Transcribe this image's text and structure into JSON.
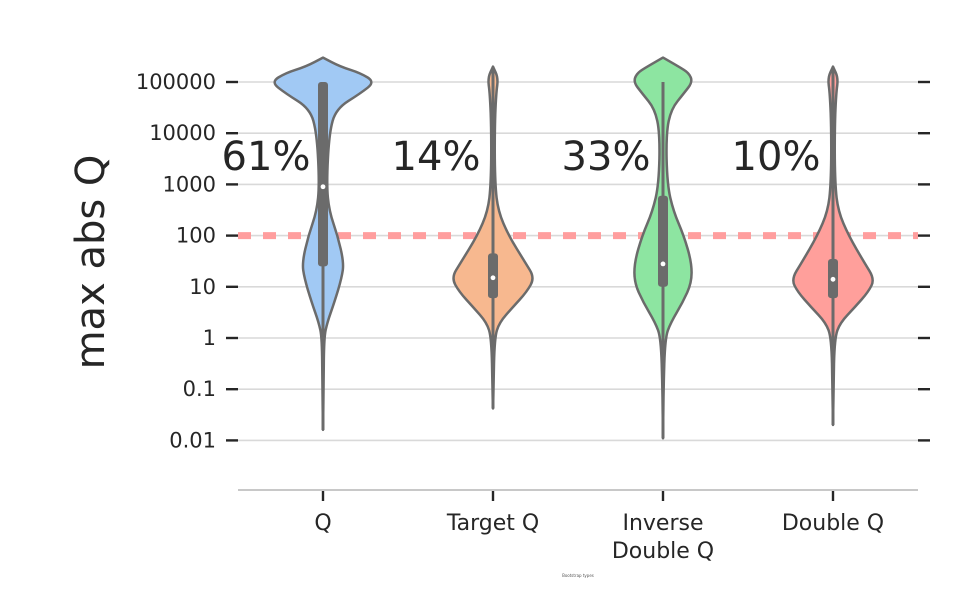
{
  "chart_data": {
    "type": "violin",
    "ylabel": "max abs Q",
    "xlabel_small": "Bootstrap types",
    "yscale": "log",
    "ylim": [
      0.001,
      300000
    ],
    "yticks": [
      {
        "value": 100000,
        "label": "100000"
      },
      {
        "value": 10000,
        "label": "10000"
      },
      {
        "value": 1000,
        "label": "1000"
      },
      {
        "value": 100,
        "label": "100"
      },
      {
        "value": 10,
        "label": "10"
      },
      {
        "value": 1,
        "label": "1"
      },
      {
        "value": 0.1,
        "label": "0.1"
      },
      {
        "value": 0.01,
        "label": "0.01"
      }
    ],
    "threshold": {
      "value": 100,
      "color": "#ff9e9e",
      "style": "dashed"
    },
    "grid": true,
    "series": [
      {
        "lines": [
          "Q"
        ],
        "percent": "61%",
        "color": "#a1c9f4",
        "median": 900,
        "q1": 25,
        "q3": 100000,
        "whisker_low": 0.016,
        "whisker_high": 100000,
        "min": 0.016,
        "max": 300000,
        "profile": [
          [
            300000,
            0
          ],
          [
            200000,
            0.33
          ],
          [
            150000,
            0.72
          ],
          [
            100000,
            1.0
          ],
          [
            60000,
            0.72
          ],
          [
            30000,
            0.25
          ],
          [
            10000,
            0.12
          ],
          [
            1000,
            0.07
          ],
          [
            300,
            0.12
          ],
          [
            100,
            0.28
          ],
          [
            30,
            0.4
          ],
          [
            15,
            0.36
          ],
          [
            5,
            0.22
          ],
          [
            2,
            0.08
          ],
          [
            1,
            0.02
          ],
          [
            0.1,
            0.01
          ],
          [
            0.016,
            0
          ]
        ]
      },
      {
        "lines": [
          "Target Q"
        ],
        "percent": "14%",
        "color": "#f7b88f",
        "median": 15,
        "q1": 6,
        "q3": 45,
        "whisker_low": 0.042,
        "whisker_high": 200000,
        "min": 0.042,
        "max": 200000,
        "profile": [
          [
            200000,
            0
          ],
          [
            120000,
            0.1
          ],
          [
            60000,
            0.06
          ],
          [
            10000,
            0.03
          ],
          [
            1000,
            0.04
          ],
          [
            300,
            0.1
          ],
          [
            100,
            0.3
          ],
          [
            30,
            0.62
          ],
          [
            15,
            0.8
          ],
          [
            8,
            0.65
          ],
          [
            4,
            0.38
          ],
          [
            2,
            0.12
          ],
          [
            1,
            0.03
          ],
          [
            0.1,
            0.01
          ],
          [
            0.042,
            0
          ]
        ]
      },
      {
        "lines": [
          "Inverse",
          "Double Q"
        ],
        "percent": "33%",
        "color": "#8de5a1",
        "median": 28,
        "q1": 10,
        "q3": 600,
        "whisker_low": 0.011,
        "whisker_high": 100000,
        "min": 0.011,
        "max": 300000,
        "profile": [
          [
            300000,
            0
          ],
          [
            200000,
            0.3
          ],
          [
            150000,
            0.5
          ],
          [
            100000,
            0.57
          ],
          [
            60000,
            0.4
          ],
          [
            30000,
            0.16
          ],
          [
            10000,
            0.06
          ],
          [
            1000,
            0.08
          ],
          [
            300,
            0.2
          ],
          [
            100,
            0.4
          ],
          [
            30,
            0.55
          ],
          [
            12,
            0.55
          ],
          [
            5,
            0.38
          ],
          [
            2,
            0.15
          ],
          [
            1,
            0.04
          ],
          [
            0.1,
            0.01
          ],
          [
            0.011,
            0
          ]
        ]
      },
      {
        "lines": [
          "Double Q"
        ],
        "percent": "10%",
        "color": "#ff9f9b",
        "median": 14,
        "q1": 6,
        "q3": 35,
        "whisker_low": 0.02,
        "whisker_high": 200000,
        "min": 0.02,
        "max": 200000,
        "profile": [
          [
            200000,
            0
          ],
          [
            120000,
            0.1
          ],
          [
            60000,
            0.06
          ],
          [
            10000,
            0.03
          ],
          [
            1000,
            0.04
          ],
          [
            300,
            0.1
          ],
          [
            100,
            0.3
          ],
          [
            30,
            0.6
          ],
          [
            14,
            0.8
          ],
          [
            8,
            0.68
          ],
          [
            4,
            0.42
          ],
          [
            2,
            0.14
          ],
          [
            1,
            0.03
          ],
          [
            0.1,
            0.01
          ],
          [
            0.02,
            0
          ]
        ]
      }
    ]
  }
}
